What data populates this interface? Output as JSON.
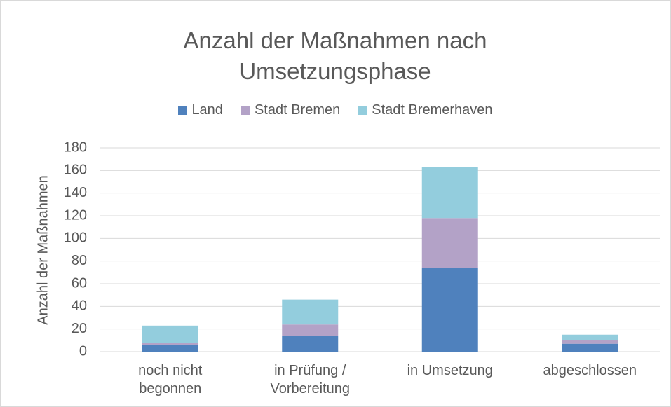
{
  "chart_data": {
    "type": "bar",
    "stacked": true,
    "title": "Anzahl der Maßnahmen nach Umsetzungsphase",
    "y_label": "Anzahl der Maßnahmen",
    "categories": [
      "noch nicht begonnen",
      "in Prüfung / Vorbereitung",
      "in Umsetzung",
      "abgeschlossen"
    ],
    "series": [
      {
        "name": "Land",
        "color": "#4f81bd",
        "values": [
          6,
          14,
          74,
          7
        ]
      },
      {
        "name": "Stadt Bremen",
        "color": "#b3a2c7",
        "values": [
          2,
          10,
          44,
          3
        ]
      },
      {
        "name": "Stadt Bremerhaven",
        "color": "#93cddd",
        "values": [
          15,
          22,
          45,
          5
        ]
      }
    ],
    "ylim": [
      0,
      180
    ],
    "yticks": [
      0,
      20,
      40,
      60,
      80,
      100,
      120,
      140,
      160,
      180
    ],
    "grid": true,
    "legend": "top"
  }
}
